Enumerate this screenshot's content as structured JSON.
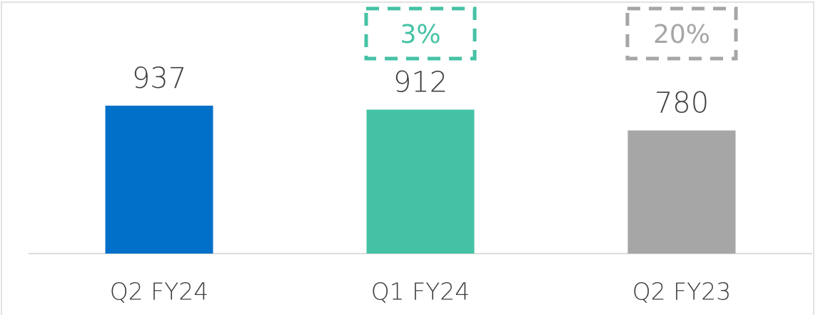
{
  "chart_data": {
    "type": "bar",
    "categories": [
      "Q2 FY24",
      "Q1 FY24",
      "Q2 FY23"
    ],
    "values": [
      937,
      912,
      780
    ],
    "colors": [
      "#0070c8",
      "#45c2a5",
      "#a6a6a6"
    ],
    "ylim": [
      0,
      1000
    ],
    "annotations": [
      {
        "text": "3%",
        "category": "Q1 FY24",
        "color": "#45c2a5"
      },
      {
        "text": "20%",
        "category": "Q2 FY23",
        "color": "#a6a6a6"
      }
    ]
  }
}
